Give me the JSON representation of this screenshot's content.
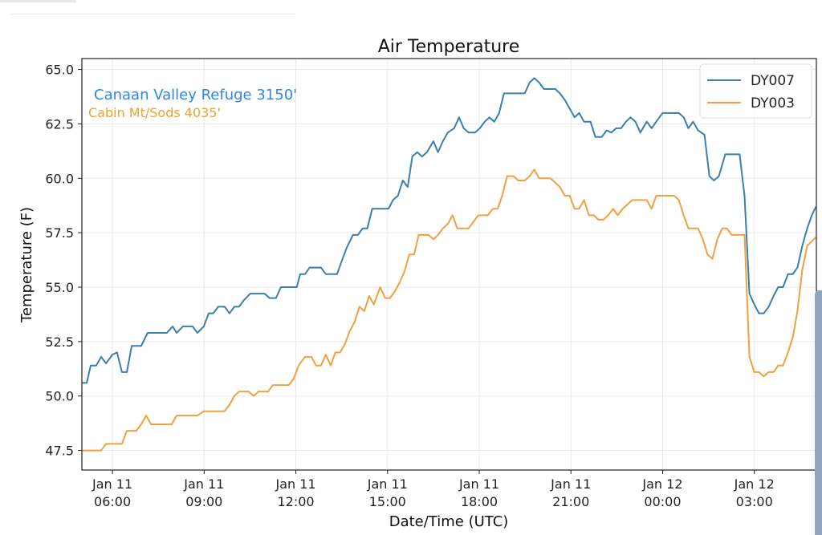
{
  "chart_data": {
    "type": "line",
    "title": "Air Temperature",
    "xlabel": "Date/Time (UTC)",
    "ylabel": "Temperature (F)",
    "x_units": "hours since Jan 11 00:00 UTC",
    "xlim": [
      5.0,
      29.03
    ],
    "ylim": [
      46.6,
      65.5
    ],
    "grid": true,
    "legend_position": "top-right",
    "yticks": [
      47.5,
      50.0,
      52.5,
      55.0,
      57.5,
      60.0,
      62.5,
      65.0
    ],
    "ytick_labels": [
      "47.5",
      "50.0",
      "52.5",
      "55.0",
      "57.5",
      "60.0",
      "62.5",
      "65.0"
    ],
    "xticks": [
      6,
      9,
      12,
      15,
      18,
      21,
      24,
      27
    ],
    "xtick_labels": [
      [
        "Jan 11",
        "06:00"
      ],
      [
        "Jan 11",
        "09:00"
      ],
      [
        "Jan 11",
        "12:00"
      ],
      [
        "Jan 11",
        "15:00"
      ],
      [
        "Jan 11",
        "18:00"
      ],
      [
        "Jan 11",
        "21:00"
      ],
      [
        "Jan 12",
        "00:00"
      ],
      [
        "Jan 12",
        "03:00"
      ]
    ],
    "annotations": [
      {
        "text": "Canaan Valley Refuge 3150'",
        "color": "#2b88e8"
      },
      {
        "text": "Cabin Mt/Sods 4035'",
        "color": "#f0a030"
      }
    ],
    "series": [
      {
        "name": "DY007",
        "color": "#3a7fad",
        "points": [
          [
            5.0,
            50.6
          ],
          [
            5.16,
            50.6
          ],
          [
            5.29,
            51.4
          ],
          [
            5.47,
            51.4
          ],
          [
            5.63,
            51.8
          ],
          [
            5.79,
            51.5
          ],
          [
            6.0,
            51.9
          ],
          [
            6.15,
            52.0
          ],
          [
            6.31,
            51.1
          ],
          [
            6.47,
            51.1
          ],
          [
            6.63,
            52.3
          ],
          [
            6.94,
            52.3
          ],
          [
            7.15,
            52.9
          ],
          [
            7.78,
            52.9
          ],
          [
            7.97,
            53.2
          ],
          [
            8.1,
            52.9
          ],
          [
            8.31,
            53.2
          ],
          [
            8.62,
            53.2
          ],
          [
            8.78,
            52.9
          ],
          [
            8.99,
            53.2
          ],
          [
            9.15,
            53.8
          ],
          [
            9.3,
            53.8
          ],
          [
            9.46,
            54.1
          ],
          [
            9.67,
            54.1
          ],
          [
            9.83,
            53.8
          ],
          [
            9.99,
            54.1
          ],
          [
            10.14,
            54.1
          ],
          [
            10.3,
            54.4
          ],
          [
            10.51,
            54.7
          ],
          [
            10.98,
            54.7
          ],
          [
            11.14,
            54.5
          ],
          [
            11.35,
            54.5
          ],
          [
            11.51,
            55.0
          ],
          [
            12.03,
            55.0
          ],
          [
            12.14,
            55.6
          ],
          [
            12.3,
            55.6
          ],
          [
            12.45,
            55.9
          ],
          [
            12.82,
            55.9
          ],
          [
            12.98,
            55.6
          ],
          [
            13.35,
            55.6
          ],
          [
            13.5,
            56.2
          ],
          [
            13.66,
            56.8
          ],
          [
            13.87,
            57.4
          ],
          [
            14.03,
            57.4
          ],
          [
            14.19,
            57.7
          ],
          [
            14.34,
            57.7
          ],
          [
            14.5,
            58.6
          ],
          [
            15.03,
            58.6
          ],
          [
            15.18,
            59.0
          ],
          [
            15.34,
            59.2
          ],
          [
            15.5,
            59.9
          ],
          [
            15.66,
            59.6
          ],
          [
            15.81,
            61.0
          ],
          [
            15.97,
            61.2
          ],
          [
            16.13,
            61.0
          ],
          [
            16.29,
            61.2
          ],
          [
            16.5,
            61.7
          ],
          [
            16.65,
            61.2
          ],
          [
            16.81,
            61.7
          ],
          [
            16.97,
            62.1
          ],
          [
            17.18,
            62.3
          ],
          [
            17.34,
            62.8
          ],
          [
            17.49,
            62.3
          ],
          [
            17.65,
            62.1
          ],
          [
            17.86,
            62.1
          ],
          [
            18.02,
            62.3
          ],
          [
            18.18,
            62.6
          ],
          [
            18.33,
            62.8
          ],
          [
            18.49,
            62.6
          ],
          [
            18.65,
            63.0
          ],
          [
            18.81,
            63.9
          ],
          [
            19.49,
            63.9
          ],
          [
            19.65,
            64.4
          ],
          [
            19.8,
            64.6
          ],
          [
            19.96,
            64.4
          ],
          [
            20.12,
            64.1
          ],
          [
            20.49,
            64.1
          ],
          [
            20.64,
            63.9
          ],
          [
            20.8,
            63.6
          ],
          [
            20.96,
            63.2
          ],
          [
            21.12,
            62.8
          ],
          [
            21.27,
            63.0
          ],
          [
            21.43,
            62.6
          ],
          [
            21.64,
            62.6
          ],
          [
            21.8,
            61.9
          ],
          [
            22.01,
            61.9
          ],
          [
            22.17,
            62.2
          ],
          [
            22.32,
            62.1
          ],
          [
            22.48,
            62.3
          ],
          [
            22.64,
            62.3
          ],
          [
            22.8,
            62.6
          ],
          [
            22.95,
            62.8
          ],
          [
            23.11,
            62.6
          ],
          [
            23.27,
            62.1
          ],
          [
            23.48,
            62.6
          ],
          [
            23.64,
            62.3
          ],
          [
            23.79,
            62.6
          ],
          [
            24.0,
            63.0
          ],
          [
            24.53,
            63.0
          ],
          [
            24.69,
            62.8
          ],
          [
            24.84,
            62.3
          ],
          [
            25.0,
            62.6
          ],
          [
            25.16,
            62.2
          ],
          [
            25.37,
            62.0
          ],
          [
            25.53,
            60.1
          ],
          [
            25.68,
            59.9
          ],
          [
            25.84,
            60.1
          ],
          [
            26.05,
            61.1
          ],
          [
            26.52,
            61.1
          ],
          [
            26.68,
            59.2
          ],
          [
            26.84,
            54.7
          ],
          [
            27.0,
            54.2
          ],
          [
            27.15,
            53.8
          ],
          [
            27.31,
            53.8
          ],
          [
            27.47,
            54.1
          ],
          [
            27.63,
            54.6
          ],
          [
            27.78,
            55.0
          ],
          [
            27.94,
            55.0
          ],
          [
            28.1,
            55.6
          ],
          [
            28.26,
            55.6
          ],
          [
            28.41,
            55.9
          ],
          [
            28.57,
            56.9
          ],
          [
            28.73,
            57.7
          ],
          [
            28.88,
            58.3
          ],
          [
            29.02,
            58.7
          ]
        ]
      },
      {
        "name": "DY003",
        "color": "#f0a040",
        "points": [
          [
            5.0,
            47.5
          ],
          [
            5.63,
            47.5
          ],
          [
            5.79,
            47.8
          ],
          [
            6.31,
            47.8
          ],
          [
            6.47,
            48.4
          ],
          [
            6.78,
            48.4
          ],
          [
            6.94,
            48.7
          ],
          [
            7.1,
            49.1
          ],
          [
            7.26,
            48.7
          ],
          [
            7.94,
            48.7
          ],
          [
            8.1,
            49.1
          ],
          [
            8.78,
            49.1
          ],
          [
            8.99,
            49.3
          ],
          [
            9.67,
            49.3
          ],
          [
            9.83,
            49.6
          ],
          [
            9.99,
            50.0
          ],
          [
            10.14,
            50.2
          ],
          [
            10.46,
            50.2
          ],
          [
            10.62,
            50.0
          ],
          [
            10.77,
            50.2
          ],
          [
            11.09,
            50.2
          ],
          [
            11.25,
            50.5
          ],
          [
            11.77,
            50.5
          ],
          [
            11.93,
            50.8
          ],
          [
            12.09,
            51.4
          ],
          [
            12.3,
            51.8
          ],
          [
            12.51,
            51.8
          ],
          [
            12.66,
            51.4
          ],
          [
            12.82,
            51.4
          ],
          [
            12.98,
            51.9
          ],
          [
            13.14,
            51.4
          ],
          [
            13.29,
            52.0
          ],
          [
            13.45,
            52.0
          ],
          [
            13.61,
            52.4
          ],
          [
            13.77,
            53.0
          ],
          [
            13.92,
            53.4
          ],
          [
            14.08,
            54.1
          ],
          [
            14.24,
            53.9
          ],
          [
            14.4,
            54.6
          ],
          [
            14.55,
            54.2
          ],
          [
            14.76,
            55.0
          ],
          [
            14.92,
            54.5
          ],
          [
            15.08,
            54.5
          ],
          [
            15.24,
            54.8
          ],
          [
            15.39,
            55.2
          ],
          [
            15.55,
            55.7
          ],
          [
            15.71,
            56.5
          ],
          [
            15.87,
            56.5
          ],
          [
            16.02,
            57.4
          ],
          [
            16.34,
            57.4
          ],
          [
            16.5,
            57.2
          ],
          [
            16.65,
            57.4
          ],
          [
            16.81,
            57.7
          ],
          [
            16.97,
            57.9
          ],
          [
            17.13,
            58.3
          ],
          [
            17.28,
            57.7
          ],
          [
            17.65,
            57.7
          ],
          [
            17.81,
            58.0
          ],
          [
            17.97,
            58.3
          ],
          [
            18.28,
            58.3
          ],
          [
            18.44,
            58.6
          ],
          [
            18.6,
            58.6
          ],
          [
            18.75,
            59.2
          ],
          [
            18.91,
            60.1
          ],
          [
            19.12,
            60.1
          ],
          [
            19.28,
            59.9
          ],
          [
            19.49,
            59.9
          ],
          [
            19.65,
            60.1
          ],
          [
            19.8,
            60.4
          ],
          [
            19.96,
            60.0
          ],
          [
            20.33,
            60.0
          ],
          [
            20.49,
            59.8
          ],
          [
            20.64,
            59.6
          ],
          [
            20.8,
            59.2
          ],
          [
            20.96,
            59.2
          ],
          [
            21.12,
            58.6
          ],
          [
            21.27,
            58.6
          ],
          [
            21.43,
            59.0
          ],
          [
            21.59,
            58.3
          ],
          [
            21.75,
            58.3
          ],
          [
            21.9,
            58.1
          ],
          [
            22.06,
            58.1
          ],
          [
            22.22,
            58.3
          ],
          [
            22.38,
            58.6
          ],
          [
            22.53,
            58.3
          ],
          [
            22.69,
            58.6
          ],
          [
            22.85,
            58.8
          ],
          [
            23.01,
            59.0
          ],
          [
            23.48,
            59.0
          ],
          [
            23.64,
            58.6
          ],
          [
            23.79,
            59.2
          ],
          [
            24.37,
            59.2
          ],
          [
            24.53,
            59.0
          ],
          [
            24.69,
            58.3
          ],
          [
            24.84,
            57.7
          ],
          [
            25.16,
            57.7
          ],
          [
            25.32,
            57.2
          ],
          [
            25.47,
            56.5
          ],
          [
            25.63,
            56.3
          ],
          [
            25.79,
            57.2
          ],
          [
            25.95,
            57.7
          ],
          [
            26.1,
            57.7
          ],
          [
            26.26,
            57.4
          ],
          [
            26.68,
            57.4
          ],
          [
            26.84,
            51.8
          ],
          [
            27.0,
            51.1
          ],
          [
            27.15,
            51.1
          ],
          [
            27.31,
            50.9
          ],
          [
            27.47,
            51.1
          ],
          [
            27.63,
            51.1
          ],
          [
            27.78,
            51.4
          ],
          [
            27.94,
            51.4
          ],
          [
            28.1,
            52.0
          ],
          [
            28.26,
            52.7
          ],
          [
            28.41,
            53.9
          ],
          [
            28.57,
            55.8
          ],
          [
            28.73,
            56.9
          ],
          [
            28.88,
            57.1
          ],
          [
            29.02,
            57.3
          ]
        ]
      }
    ]
  }
}
